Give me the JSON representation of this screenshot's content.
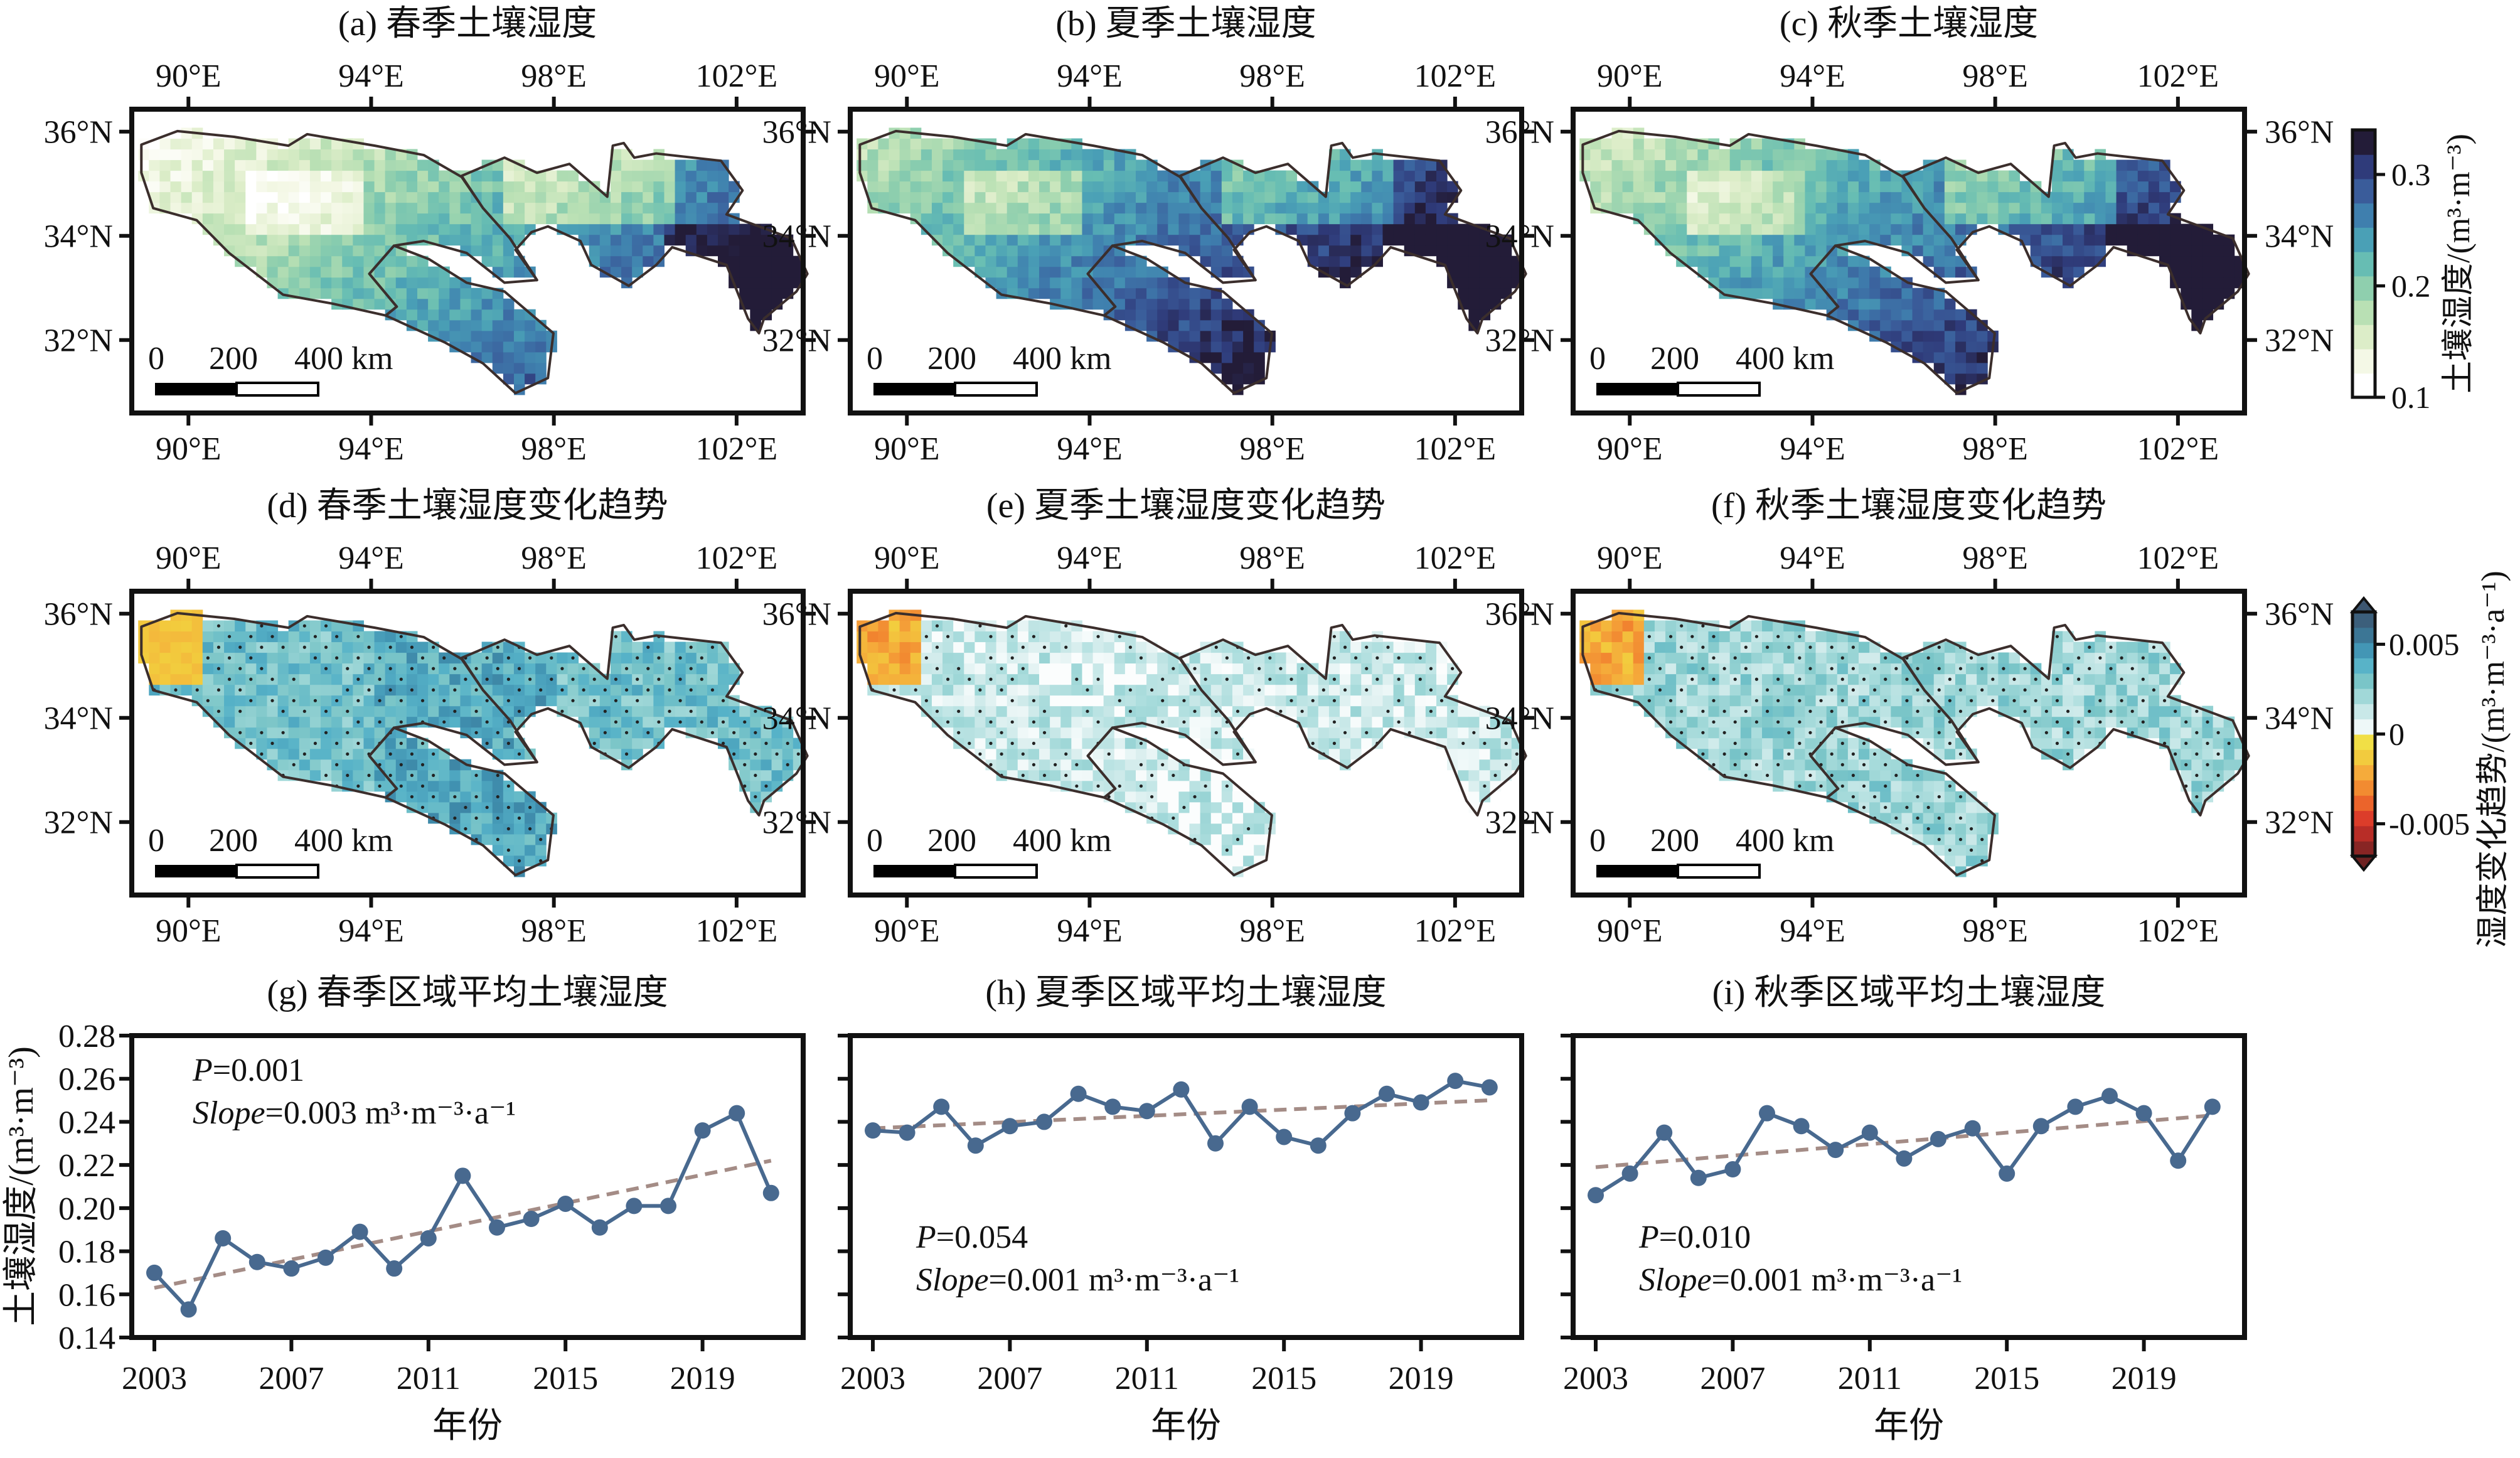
{
  "maps": {
    "lon_ticks": [
      "90°E",
      "94°E",
      "98°E",
      "102°E"
    ],
    "lat_ticks": [
      "36°N",
      "34°N",
      "32°N"
    ],
    "scale_bar": [
      "0",
      "200",
      "400 km"
    ],
    "panels": [
      {
        "title": "(a) 春季土壤湿度",
        "kind": "moisture",
        "season": "spring"
      },
      {
        "title": "(b) 夏季土壤湿度",
        "kind": "moisture",
        "season": "summer"
      },
      {
        "title": "(c) 秋季土壤湿度",
        "kind": "moisture",
        "season": "autumn"
      },
      {
        "title": "(d) 春季土壤湿度变化趋势",
        "kind": "trend",
        "season": "spring"
      },
      {
        "title": "(e) 夏季土壤湿度变化趋势",
        "kind": "trend",
        "season": "summer"
      },
      {
        "title": "(f) 秋季土壤湿度变化趋势",
        "kind": "trend",
        "season": "autumn"
      }
    ]
  },
  "colorbars": [
    {
      "label": "土壤湿度/(m³·m⁻³)",
      "ticks": [
        "0.3",
        "0.2",
        "0.1"
      ],
      "tick_values": [
        0.3,
        0.2,
        0.1
      ],
      "range": [
        0.1,
        0.34
      ],
      "colors": [
        "#ffffff",
        "#f4f8e6",
        "#dcedc8",
        "#b9e0b4",
        "#8fcfae",
        "#67bdb3",
        "#4aa0b6",
        "#3f7fae",
        "#3a5c9a",
        "#2f3b7a",
        "#231c38"
      ]
    },
    {
      "label": "湿度变化趋势/(m³·m⁻³·a⁻¹)",
      "ticks": [
        "0.005",
        "0",
        "-0.005"
      ],
      "tick_values": [
        0.005,
        0,
        -0.005
      ],
      "range": [
        -0.0068,
        0.0068
      ],
      "colors_negative": [
        "#6e2222",
        "#b22a26",
        "#e2402a",
        "#f07a2c",
        "#f5a63a",
        "#f2d03e",
        "#f0e84a"
      ],
      "colors_positive": [
        "#ffffff",
        "#d8eeee",
        "#a9dcdc",
        "#7cc6c8",
        "#56b2c8",
        "#3f90b0",
        "#3b6a88",
        "#3d5670"
      ]
    }
  ],
  "chart_data": [
    {
      "type": "line",
      "title": "(g) 春季区域平均土壤湿度",
      "xlabel": "年份",
      "ylabel": "土壤湿度/(m³·m⁻³)",
      "x": [
        2003,
        2004,
        2005,
        2006,
        2007,
        2008,
        2009,
        2010,
        2011,
        2012,
        2013,
        2014,
        2015,
        2016,
        2017,
        2018,
        2019,
        2020,
        2021
      ],
      "values": [
        0.17,
        0.153,
        0.186,
        0.175,
        0.172,
        0.177,
        0.189,
        0.172,
        0.186,
        0.215,
        0.191,
        0.195,
        0.202,
        0.191,
        0.201,
        0.201,
        0.236,
        0.244,
        0.207
      ],
      "trend": {
        "x": [
          2003,
          2021
        ],
        "y": [
          0.163,
          0.222
        ]
      },
      "annotation": {
        "p_label": "P",
        "p_value": "=0.001",
        "slope_label": "Slope",
        "slope_value": "=0.003 m³·m⁻³·a⁻¹"
      },
      "ylim": [
        0.14,
        0.28
      ],
      "yticks": [
        "0.14",
        "0.16",
        "0.18",
        "0.20",
        "0.22",
        "0.24",
        "0.26",
        "0.28"
      ],
      "xticks": [
        "2003",
        "2007",
        "2011",
        "2015",
        "2019"
      ],
      "show_ylabels": true
    },
    {
      "type": "line",
      "title": "(h) 夏季区域平均土壤湿度",
      "xlabel": "年份",
      "x": [
        2003,
        2004,
        2005,
        2006,
        2007,
        2008,
        2009,
        2010,
        2011,
        2012,
        2013,
        2014,
        2015,
        2016,
        2017,
        2018,
        2019,
        2020,
        2021
      ],
      "values": [
        0.236,
        0.235,
        0.247,
        0.229,
        0.238,
        0.24,
        0.253,
        0.247,
        0.245,
        0.255,
        0.23,
        0.247,
        0.233,
        0.229,
        0.244,
        0.253,
        0.249,
        0.259,
        0.256
      ],
      "trend": {
        "x": [
          2003,
          2021
        ],
        "y": [
          0.237,
          0.25
        ]
      },
      "annotation": {
        "p_label": "P",
        "p_value": "=0.054",
        "slope_label": "Slope",
        "slope_value": "=0.001 m³·m⁻³·a⁻¹"
      },
      "ylim": [
        0.14,
        0.28
      ],
      "xticks": [
        "2003",
        "2007",
        "2011",
        "2015",
        "2019"
      ],
      "show_ylabels": false
    },
    {
      "type": "line",
      "title": "(i) 秋季区域平均土壤湿度",
      "xlabel": "年份",
      "x": [
        2003,
        2004,
        2005,
        2006,
        2007,
        2008,
        2009,
        2010,
        2011,
        2012,
        2013,
        2014,
        2015,
        2016,
        2017,
        2018,
        2019,
        2020,
        2021
      ],
      "values": [
        0.206,
        0.216,
        0.235,
        0.214,
        0.218,
        0.244,
        0.238,
        0.227,
        0.235,
        0.223,
        0.232,
        0.237,
        0.216,
        0.238,
        0.247,
        0.252,
        0.244,
        0.222,
        0.247
      ],
      "trend": {
        "x": [
          2003,
          2021
        ],
        "y": [
          0.219,
          0.243
        ]
      },
      "annotation": {
        "p_label": "P",
        "p_value": "=0.010",
        "slope_label": "Slope",
        "slope_value": "=0.001 m³·m⁻³·a⁻¹"
      },
      "ylim": [
        0.14,
        0.28
      ],
      "xticks": [
        "2003",
        "2007",
        "2011",
        "2015",
        "2019"
      ],
      "show_ylabels": false
    }
  ],
  "style": {
    "line_color": "#48698f",
    "trend_color": "#a48c86"
  }
}
